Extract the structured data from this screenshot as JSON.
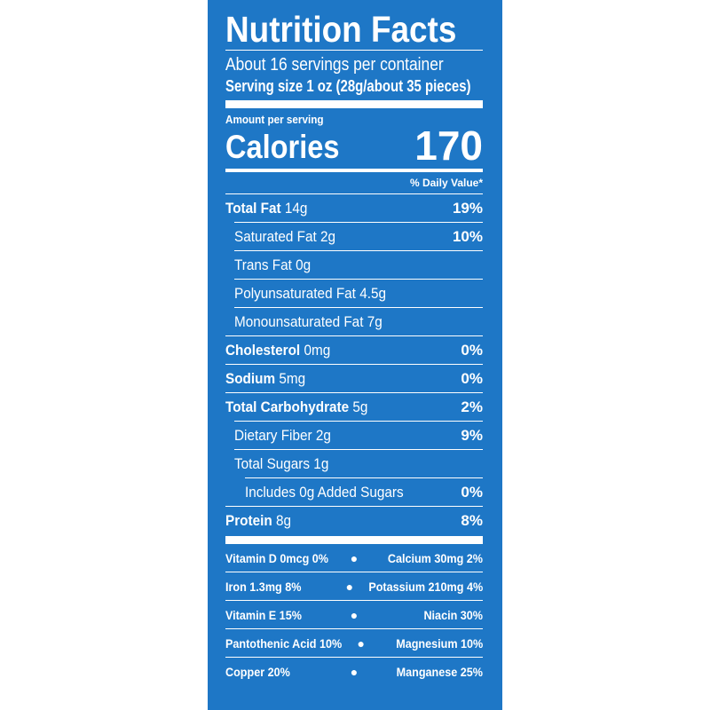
{
  "label": {
    "title": "Nutrition Facts",
    "servings_per_container": "About 16 servings per container",
    "serving_size": "Serving size 1 oz (28g/about 35 pieces)",
    "amount_per_serving": "Amount per serving",
    "calories_label": "Calories",
    "calories_value": "170",
    "daily_value_header": "% Daily Value*",
    "nutrients": [
      {
        "name": "Total Fat",
        "amount": "14g",
        "dv": "19%"
      },
      {
        "name": "Saturated Fat",
        "amount": "2g",
        "dv": "10%"
      },
      {
        "name": "Trans Fat",
        "amount": "0g",
        "dv": ""
      },
      {
        "name": "Polyunsaturated Fat",
        "amount": "4.5g",
        "dv": ""
      },
      {
        "name": "Monounsaturated Fat",
        "amount": "7g",
        "dv": ""
      },
      {
        "name": "Cholesterol",
        "amount": "0mg",
        "dv": "0%"
      },
      {
        "name": "Sodium",
        "amount": "5mg",
        "dv": "0%"
      },
      {
        "name": "Total Carbohydrate",
        "amount": "5g",
        "dv": "2%"
      },
      {
        "name": "Dietary Fiber",
        "amount": "2g",
        "dv": "9%"
      },
      {
        "name": "Total Sugars",
        "amount": "1g",
        "dv": ""
      },
      {
        "name": "Includes 0g Added Sugars",
        "amount": "",
        "dv": "0%"
      },
      {
        "name": "Protein",
        "amount": "8g",
        "dv": "8%"
      }
    ],
    "vitamins": [
      {
        "left": "Vitamin D 0mcg 0%",
        "right": "Calcium 30mg 2%"
      },
      {
        "left": "Iron 1.3mg 8%",
        "right": "Potassium 210mg 4%"
      },
      {
        "left": "Vitamin E 15%",
        "right": "Niacin 30%"
      },
      {
        "left": "Pantothenic Acid 10%",
        "right": "Magnesium 10%"
      },
      {
        "left": "Copper 20%",
        "right": "Manganese 25%"
      }
    ],
    "bullet": "●",
    "colors": {
      "background": "#1e77c6",
      "text": "#ffffff"
    }
  }
}
